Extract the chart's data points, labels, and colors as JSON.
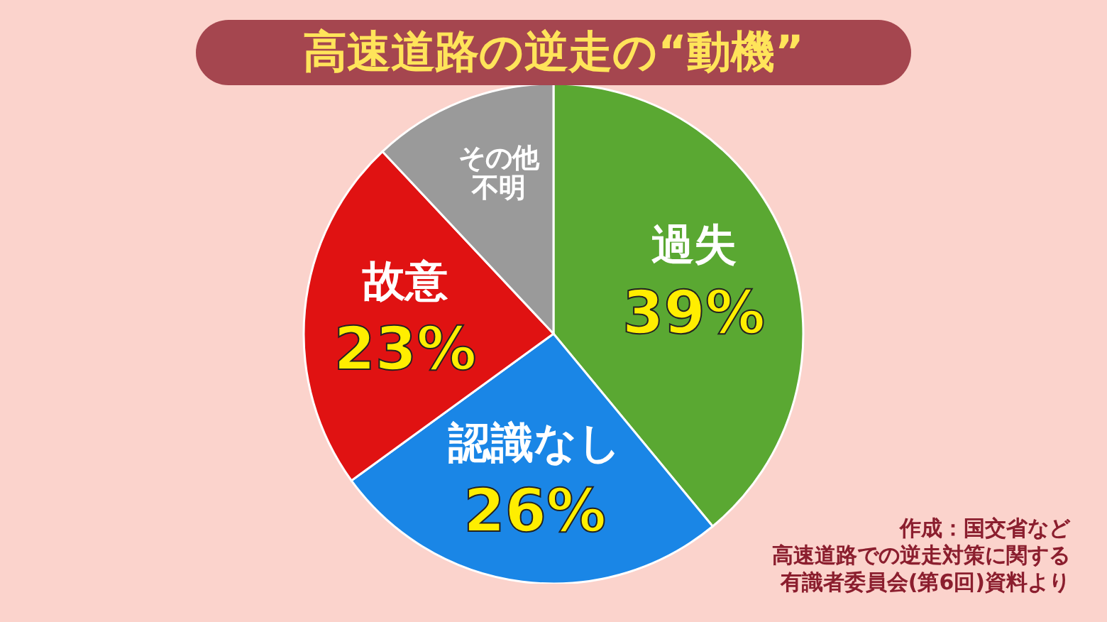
{
  "chart_data": {
    "type": "pie",
    "title": "高速道路の逆走の“動機”",
    "categories": [
      "過失",
      "認識なし",
      "故意",
      "その他不明"
    ],
    "values": [
      39,
      26,
      23,
      12
    ],
    "colors": [
      "#5aa832",
      "#1a86e6",
      "#e01212",
      "#9a9a9a"
    ],
    "value_labels": [
      "39%",
      "26%",
      "23%",
      null
    ],
    "legend": false,
    "annotations": [
      "作成：国交省など",
      "高速道路での逆走対策に関する",
      "有識者委員会(第6回)資料より"
    ]
  }
}
